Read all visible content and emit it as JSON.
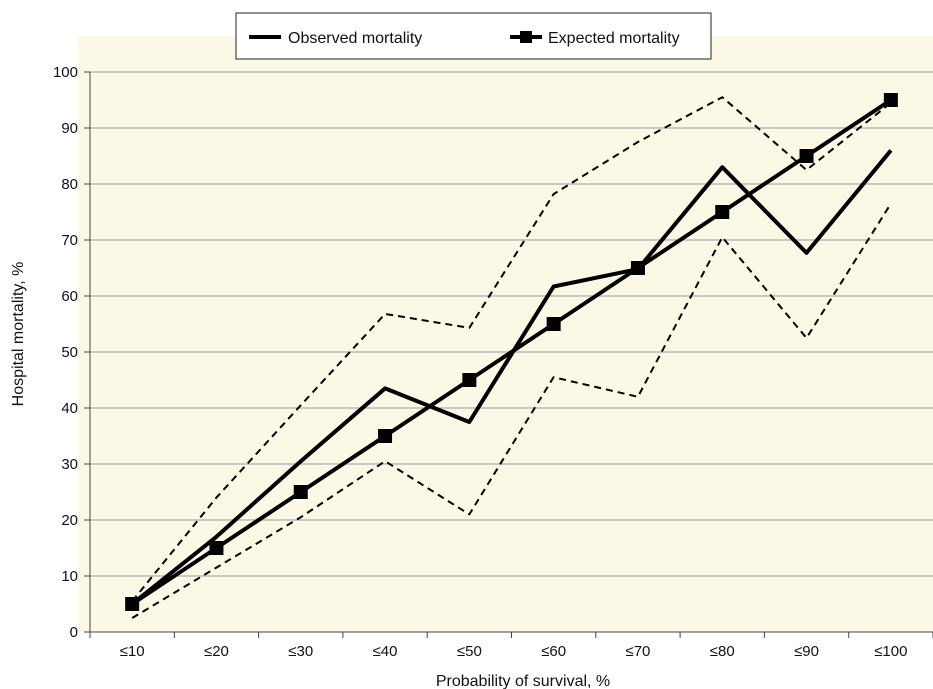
{
  "chart_data": {
    "type": "line",
    "xlabel": "Probability of survival, %",
    "ylabel": "Hospital mortality, %",
    "categories": [
      "≤10",
      "≤20",
      "≤30",
      "≤40",
      "≤50",
      "≤60",
      "≤70",
      "≤80",
      "≤90",
      "≤100"
    ],
    "ylim": [
      0,
      100
    ],
    "yticks": [
      0,
      10,
      20,
      30,
      40,
      50,
      60,
      70,
      80,
      90,
      100
    ],
    "grid": true,
    "legend_position": "top",
    "plot_background": "#fbf8e6",
    "series": [
      {
        "name": "Observed mortality",
        "style": "solid",
        "marker": "none",
        "color": "#000000",
        "values": [
          5,
          17,
          30.5,
          43.5,
          37.5,
          61.7,
          64.8,
          83,
          67.7,
          86
        ]
      },
      {
        "name": "Expected mortality",
        "style": "solid",
        "marker": "square",
        "color": "#000000",
        "values": [
          5,
          15,
          25,
          35,
          45,
          55,
          65,
          75,
          85,
          95
        ]
      },
      {
        "name": "",
        "style": "dashed",
        "marker": "none",
        "color": "#000000",
        "values": [
          5.5,
          24,
          40.5,
          56.8,
          54.3,
          78.2,
          87.5,
          95.5,
          82.5,
          94.5
        ]
      },
      {
        "name": "",
        "style": "dashed",
        "marker": "none",
        "color": "#000000",
        "values": [
          2.5,
          11.5,
          20.5,
          30.5,
          21,
          45.5,
          42,
          70.5,
          52.5,
          76.5
        ]
      }
    ]
  }
}
